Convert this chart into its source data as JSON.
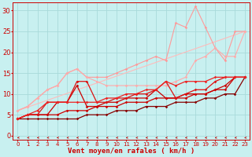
{
  "bg_color": "#c8f0f0",
  "grid_color": "#a8dada",
  "xlabel": "Vent moyen/en rafales ( km/h )",
  "xlabel_color": "#cc0000",
  "xlabel_fontsize": 6.5,
  "tick_color": "#cc0000",
  "xlim_min": -0.5,
  "xlim_max": 23.5,
  "ylim_min": -1,
  "ylim_max": 32,
  "yticks": [
    0,
    5,
    10,
    15,
    20,
    25,
    30
  ],
  "xticks": [
    0,
    1,
    2,
    3,
    4,
    5,
    6,
    7,
    8,
    9,
    10,
    11,
    12,
    13,
    14,
    15,
    16,
    17,
    18,
    19,
    20,
    21,
    22,
    23
  ],
  "tick_fontsize": 5.0,
  "lines": [
    {
      "x": [
        0,
        23
      ],
      "y": [
        6,
        25
      ],
      "color": "#ffbbbb",
      "lw": 0.8,
      "marker": null,
      "ms": 0
    },
    {
      "x": [
        0,
        1,
        2,
        3,
        4,
        5,
        6,
        7,
        8,
        9,
        10,
        11,
        12,
        13,
        14,
        15,
        16,
        17,
        18,
        19,
        20,
        21,
        22,
        23
      ],
      "y": [
        6,
        7,
        9,
        11,
        12,
        15,
        16,
        14,
        14,
        14,
        15,
        16,
        17,
        18,
        19,
        18,
        27,
        26,
        31,
        26,
        21,
        18,
        25,
        25
      ],
      "color": "#ff9999",
      "lw": 0.8,
      "marker": "D",
      "ms": 1.8
    },
    {
      "x": [
        0,
        1,
        2,
        3,
        4,
        5,
        6,
        7,
        8,
        9,
        10,
        11,
        12,
        13,
        14,
        15,
        16,
        17,
        18,
        19,
        20,
        21,
        22,
        23
      ],
      "y": [
        6,
        7,
        9,
        11,
        12,
        15,
        16,
        14,
        13,
        12,
        12,
        12,
        12,
        12,
        12,
        12,
        13,
        14,
        18,
        19,
        21,
        19,
        19,
        25
      ],
      "color": "#ffaaaa",
      "lw": 0.8,
      "marker": "D",
      "ms": 1.8
    },
    {
      "x": [
        0,
        1,
        2,
        3,
        4,
        5,
        6,
        7,
        8,
        9,
        10,
        11,
        12,
        13,
        14,
        15,
        16,
        17,
        18,
        19,
        20,
        21,
        22,
        23
      ],
      "y": [
        4,
        4,
        4,
        4,
        4,
        4,
        4,
        5,
        5,
        5,
        6,
        6,
        6,
        7,
        7,
        7,
        8,
        8,
        8,
        9,
        9,
        10,
        10,
        14
      ],
      "color": "#880000",
      "lw": 0.9,
      "marker": "D",
      "ms": 1.8
    },
    {
      "x": [
        0,
        1,
        2,
        3,
        4,
        5,
        6,
        7,
        8,
        9,
        10,
        11,
        12,
        13,
        14,
        15,
        16,
        17,
        18,
        19,
        20,
        21,
        22,
        23
      ],
      "y": [
        4,
        5,
        5,
        5,
        5,
        6,
        6,
        6,
        7,
        7,
        7,
        8,
        8,
        8,
        9,
        9,
        9,
        9,
        10,
        10,
        11,
        11,
        14,
        14
      ],
      "color": "#cc0000",
      "lw": 0.9,
      "marker": "D",
      "ms": 1.8
    },
    {
      "x": [
        0,
        1,
        2,
        3,
        4,
        5,
        6,
        7,
        8,
        9,
        10,
        11,
        12,
        13,
        14,
        15,
        16,
        17,
        18,
        19,
        20,
        21,
        22,
        23
      ],
      "y": [
        4,
        5,
        5,
        5,
        8,
        8,
        12,
        7,
        7,
        8,
        8,
        9,
        9,
        9,
        11,
        9,
        9,
        10,
        10,
        10,
        11,
        12,
        14,
        14
      ],
      "color": "#cc0000",
      "lw": 0.9,
      "marker": "D",
      "ms": 1.8
    },
    {
      "x": [
        0,
        1,
        2,
        3,
        4,
        5,
        6,
        7,
        8,
        9,
        10,
        11,
        12,
        13,
        14,
        15,
        16,
        17,
        18,
        19,
        20,
        21,
        22,
        23
      ],
      "y": [
        4,
        5,
        5,
        8,
        8,
        8,
        13,
        13,
        8,
        8,
        9,
        9,
        10,
        10,
        11,
        13,
        9,
        10,
        11,
        11,
        13,
        14,
        14,
        14
      ],
      "color": "#dd1111",
      "lw": 0.9,
      "marker": "D",
      "ms": 1.8
    },
    {
      "x": [
        0,
        1,
        2,
        3,
        4,
        5,
        6,
        7,
        8,
        9,
        10,
        11,
        12,
        13,
        14,
        15,
        16,
        17,
        18,
        19,
        20,
        21,
        22,
        23
      ],
      "y": [
        4,
        5,
        6,
        8,
        8,
        8,
        8,
        8,
        8,
        9,
        9,
        10,
        10,
        11,
        11,
        13,
        12,
        13,
        13,
        13,
        14,
        14,
        14,
        14
      ],
      "color": "#ee2222",
      "lw": 0.9,
      "marker": "D",
      "ms": 1.8
    }
  ]
}
